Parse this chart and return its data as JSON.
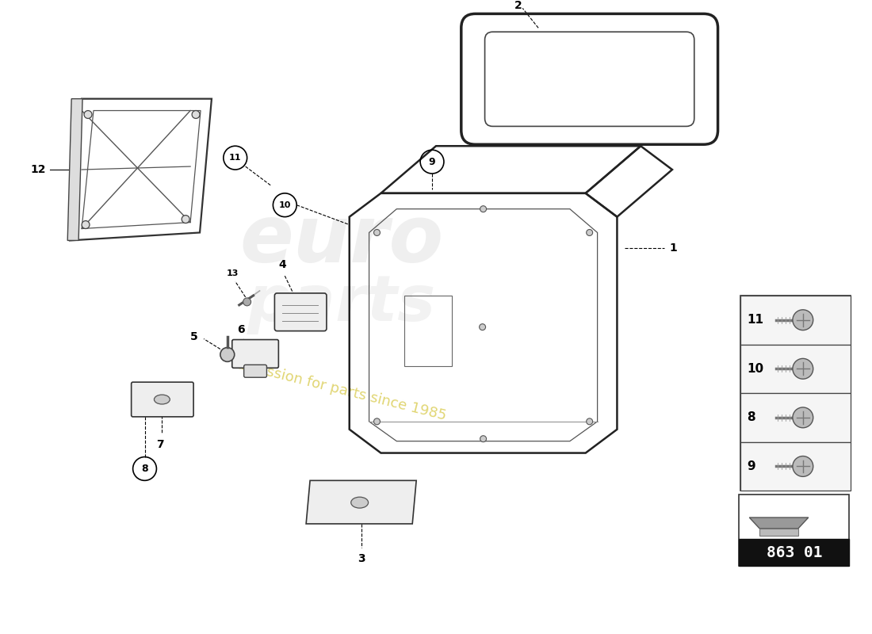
{
  "title": "",
  "background_color": "#ffffff",
  "fig_width": 11.0,
  "fig_height": 8.0,
  "dpi": 100,
  "watermark_text": "europarts",
  "watermark_subtext": "a passion for parts since 1985",
  "part_label": "863 01",
  "fastener_labels": [
    "11",
    "10",
    "8",
    "9"
  ],
  "callout_labels": [
    "1",
    "2",
    "3",
    "4",
    "5",
    "6",
    "7",
    "8",
    "9",
    "10",
    "11",
    "12",
    "13"
  ]
}
